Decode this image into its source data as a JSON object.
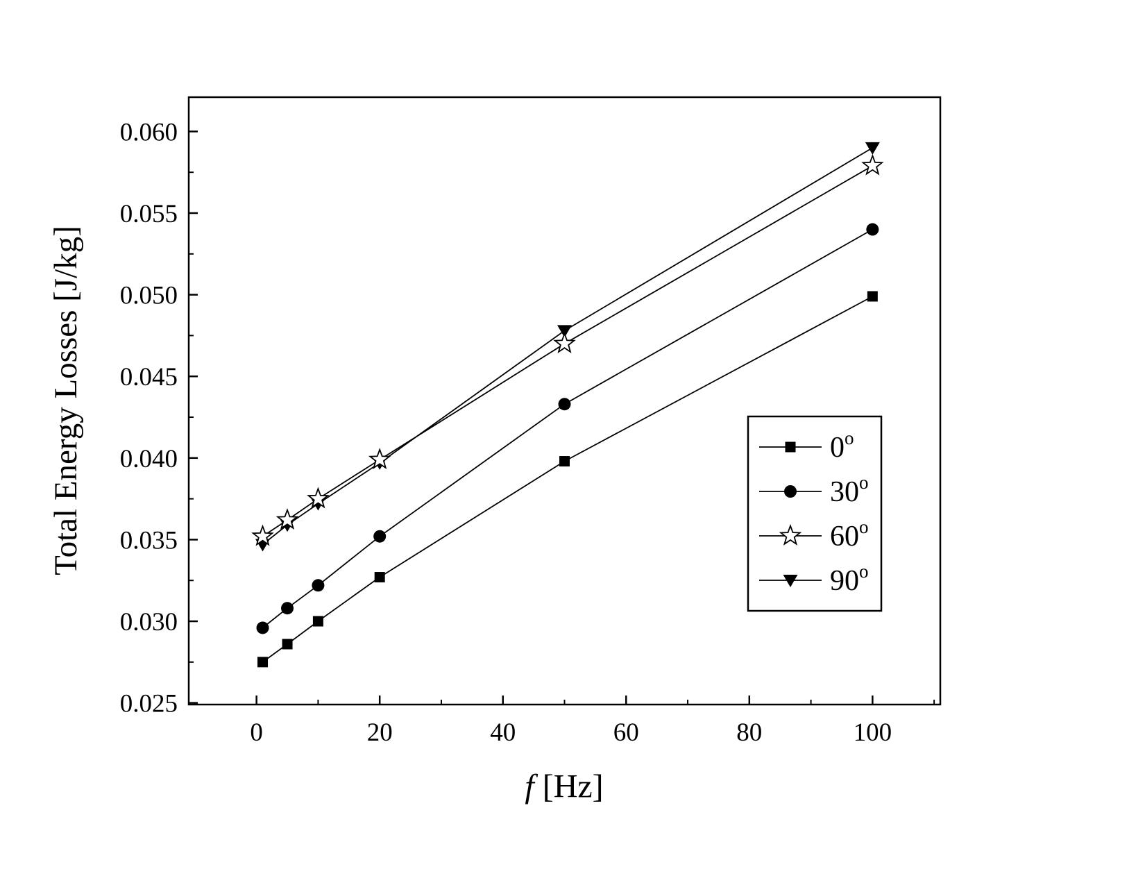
{
  "page": {
    "background": "#ffffff"
  },
  "chart_data": {
    "type": "line",
    "title": "",
    "xlabel": "f [Hz]",
    "ylabel": "Total Energy Losses [J/kg]",
    "xlim": [
      -11,
      111
    ],
    "ylim": [
      0.0249,
      0.0621
    ],
    "x_ticks": [
      0,
      20,
      40,
      60,
      80,
      100
    ],
    "x_tick_labels": [
      "0",
      "20",
      "40",
      "60",
      "80",
      "100"
    ],
    "x_minor_ticks": [
      10,
      30,
      50,
      70,
      90,
      110
    ],
    "y_ticks": [
      0.025,
      0.03,
      0.035,
      0.04,
      0.045,
      0.05,
      0.055,
      0.06
    ],
    "y_tick_labels": [
      "0.025",
      "0.030",
      "0.035",
      "0.040",
      "0.045",
      "0.050",
      "0.055",
      "0.060"
    ],
    "y_minor_ticks": [
      0.0275,
      0.0325,
      0.0375,
      0.0425,
      0.0475,
      0.0525,
      0.0575
    ],
    "x": [
      1,
      5,
      10,
      20,
      50,
      100
    ],
    "series": [
      {
        "name": "0°",
        "marker": "square",
        "marker_fill": "filled",
        "values": [
          0.0275,
          0.0286,
          0.03,
          0.0327,
          0.0398,
          0.0499
        ]
      },
      {
        "name": "30°",
        "marker": "circle",
        "marker_fill": "filled",
        "values": [
          0.0296,
          0.0308,
          0.0322,
          0.0352,
          0.0433,
          0.054
        ]
      },
      {
        "name": "60°",
        "marker": "star",
        "marker_fill": "open",
        "values": [
          0.0352,
          0.0362,
          0.0375,
          0.0399,
          0.047,
          0.0579
        ]
      },
      {
        "name": "90°",
        "marker": "triangle-down",
        "marker_fill": "filled",
        "values": [
          0.0347,
          0.0359,
          0.0372,
          0.0397,
          0.0478,
          0.059
        ]
      }
    ],
    "legend": {
      "position": "inside-right",
      "labels": [
        "0°",
        "30°",
        "60°",
        "90°"
      ]
    },
    "grid": false,
    "colors": {
      "axis": "#000000",
      "line": "#000000",
      "marker": "#000000",
      "background": "#ffffff"
    }
  }
}
